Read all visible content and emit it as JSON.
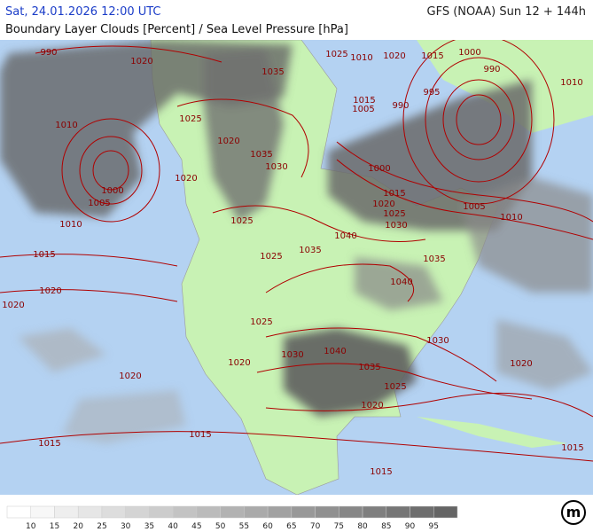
{
  "header": {
    "datetime": "Sat, 24.01.2026 12:00 UTC",
    "model": "GFS (NOAA) Sun 12 + 144h",
    "subtitle": "Boundary Layer Clouds [Percent] / Sea Level Pressure [hPa]"
  },
  "isobar_labels": [
    990,
    1020,
    1035,
    1025,
    1010,
    1020,
    1015,
    1000,
    990,
    1010,
    995,
    990,
    1015,
    1005,
    1010,
    1025,
    1020,
    1035,
    1030,
    1020,
    1000,
    1000,
    1005,
    1015,
    1020,
    1025,
    1030,
    1005,
    1010,
    1010,
    1025,
    1040,
    1015,
    1025,
    1035,
    1035,
    1040,
    1020,
    1020,
    1025,
    1030,
    1040,
    1030,
    1020,
    1035,
    1020,
    1025,
    1020,
    1020,
    1015,
    1015,
    1015,
    1015
  ],
  "legend": {
    "labels": [
      10,
      15,
      20,
      25,
      30,
      35,
      40,
      45,
      50,
      55,
      60,
      65,
      70,
      75,
      80,
      85,
      90,
      95
    ],
    "colors": [
      "#ffffff",
      "#f7f7f7",
      "#eeeeee",
      "#e6e6e6",
      "#dddddd",
      "#d4d4d4",
      "#cccccc",
      "#c3c3c3",
      "#bbbbbb",
      "#b2b2b2",
      "#aaaaaa",
      "#a1a1a1",
      "#989898",
      "#909090",
      "#878787",
      "#7f7f7f",
      "#767676",
      "#6e6e6e",
      "#656565"
    ]
  },
  "logo": "m"
}
